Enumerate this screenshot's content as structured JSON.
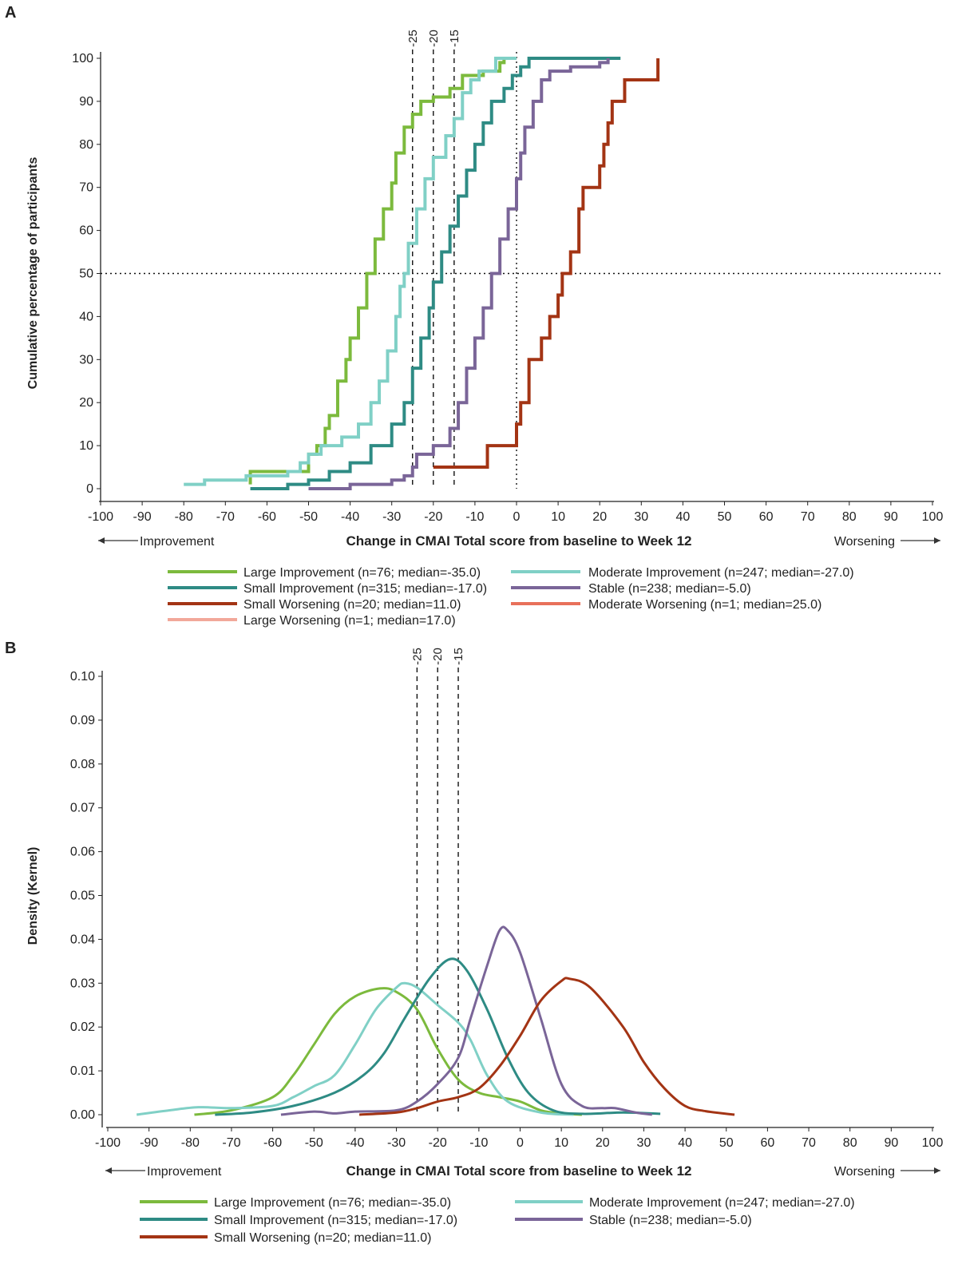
{
  "colors": {
    "large_improvement": "#7cba3d",
    "moderate_improvement": "#80d0c6",
    "small_improvement": "#2e8b84",
    "stable": "#7a6598",
    "small_worsening": "#a33414",
    "moderate_worsening": "#e8705a",
    "large_worsening": "#f2a89a"
  },
  "chart_data": [
    {
      "panel_label": "A",
      "type": "line",
      "step": true,
      "xlabel": "Change in CMAI Total score from baseline to Week 12",
      "ylabel": "Cumulative percentage of participants",
      "left_annotation": "Improvement",
      "right_annotation": "Worsening",
      "xlim": [
        -100,
        100
      ],
      "ylim": [
        0,
        100
      ],
      "xticks": [
        -100,
        -90,
        -80,
        -70,
        -60,
        -50,
        -40,
        -30,
        -20,
        -10,
        0,
        10,
        20,
        30,
        40,
        50,
        60,
        70,
        80,
        90,
        100
      ],
      "yticks": [
        0,
        10,
        20,
        30,
        40,
        50,
        60,
        70,
        80,
        90,
        100
      ],
      "reference_lines": [
        {
          "x": -25,
          "label": "-25",
          "style": "dashed"
        },
        {
          "x": -20,
          "label": "-20",
          "style": "dashed"
        },
        {
          "x": -15,
          "label": "-15",
          "style": "dashed"
        },
        {
          "x": 0,
          "style": "dotted"
        },
        {
          "y": 50,
          "style": "dotted"
        }
      ],
      "legend": [
        {
          "label": "Large Improvement (n=76; median=-35.0)",
          "color_key": "large_improvement"
        },
        {
          "label": "Moderate Improvement (n=247; median=-27.0)",
          "color_key": "moderate_improvement"
        },
        {
          "label": "Small Improvement (n=315; median=-17.0)",
          "color_key": "small_improvement"
        },
        {
          "label": "Stable (n=238; median=-5.0)",
          "color_key": "stable"
        },
        {
          "label": "Small Worsening (n=20; median=11.0)",
          "color_key": "small_worsening"
        },
        {
          "label": "Moderate Worsening (n=1; median=25.0)",
          "color_key": "moderate_worsening"
        },
        {
          "label": "Large Worsening (n=1; median=17.0)",
          "color_key": "large_worsening"
        }
      ],
      "series": [
        {
          "name": "Large Improvement",
          "color_key": "large_improvement",
          "points": [
            [
              -64,
              1
            ],
            [
              -64,
              4
            ],
            [
              -52,
              4
            ],
            [
              -50,
              8
            ],
            [
              -48,
              10
            ],
            [
              -46,
              14
            ],
            [
              -45,
              17
            ],
            [
              -43,
              25
            ],
            [
              -41,
              30
            ],
            [
              -40,
              35
            ],
            [
              -38,
              42
            ],
            [
              -36,
              50
            ],
            [
              -34,
              58
            ],
            [
              -32,
              65
            ],
            [
              -30,
              71
            ],
            [
              -29,
              78
            ],
            [
              -27,
              84
            ],
            [
              -25,
              87
            ],
            [
              -23,
              90
            ],
            [
              -20,
              91
            ],
            [
              -16,
              93
            ],
            [
              -13,
              96
            ],
            [
              -8,
              97
            ],
            [
              -4,
              99
            ],
            [
              -3,
              100
            ]
          ]
        },
        {
          "name": "Moderate Improvement",
          "color_key": "moderate_improvement",
          "points": [
            [
              -80,
              1
            ],
            [
              -75,
              2
            ],
            [
              -65,
              3
            ],
            [
              -55,
              4
            ],
            [
              -52,
              6
            ],
            [
              -50,
              8
            ],
            [
              -47,
              10
            ],
            [
              -42,
              12
            ],
            [
              -38,
              15
            ],
            [
              -35,
              20
            ],
            [
              -33,
              25
            ],
            [
              -31,
              32
            ],
            [
              -29,
              40
            ],
            [
              -28,
              47
            ],
            [
              -27,
              50
            ],
            [
              -26,
              57
            ],
            [
              -24,
              65
            ],
            [
              -22,
              72
            ],
            [
              -20,
              77
            ],
            [
              -17,
              82
            ],
            [
              -15,
              86
            ],
            [
              -13,
              92
            ],
            [
              -11,
              95
            ],
            [
              -9,
              97
            ],
            [
              -5,
              100
            ],
            [
              0,
              100
            ]
          ]
        },
        {
          "name": "Small Improvement",
          "color_key": "small_improvement",
          "points": [
            [
              -64,
              0
            ],
            [
              -55,
              1
            ],
            [
              -50,
              2
            ],
            [
              -45,
              4
            ],
            [
              -40,
              6
            ],
            [
              -35,
              10
            ],
            [
              -30,
              15
            ],
            [
              -27,
              20
            ],
            [
              -25,
              28
            ],
            [
              -23,
              35
            ],
            [
              -21,
              42
            ],
            [
              -20,
              48
            ],
            [
              -18,
              55
            ],
            [
              -16,
              61
            ],
            [
              -14,
              68
            ],
            [
              -12,
              74
            ],
            [
              -10,
              80
            ],
            [
              -8,
              85
            ],
            [
              -6,
              90
            ],
            [
              -3,
              93
            ],
            [
              -1,
              96
            ],
            [
              1,
              98
            ],
            [
              3,
              100
            ],
            [
              25,
              100
            ]
          ]
        },
        {
          "name": "Stable",
          "color_key": "stable",
          "points": [
            [
              -50,
              0
            ],
            [
              -40,
              1
            ],
            [
              -30,
              2
            ],
            [
              -27,
              3
            ],
            [
              -25,
              5
            ],
            [
              -24,
              8
            ],
            [
              -20,
              10
            ],
            [
              -16,
              14
            ],
            [
              -14,
              20
            ],
            [
              -12,
              28
            ],
            [
              -10,
              35
            ],
            [
              -8,
              42
            ],
            [
              -6,
              50
            ],
            [
              -4,
              58
            ],
            [
              -2,
              65
            ],
            [
              0,
              72
            ],
            [
              1,
              78
            ],
            [
              2,
              84
            ],
            [
              4,
              90
            ],
            [
              6,
              95
            ],
            [
              8,
              97
            ],
            [
              13,
              98
            ],
            [
              20,
              99
            ],
            [
              22,
              100
            ]
          ]
        },
        {
          "name": "Small Worsening",
          "color_key": "small_worsening",
          "points": [
            [
              -20,
              5
            ],
            [
              -7,
              10
            ],
            [
              0,
              15
            ],
            [
              1,
              20
            ],
            [
              3,
              25
            ],
            [
              3,
              30
            ],
            [
              6,
              35
            ],
            [
              8,
              40
            ],
            [
              10,
              45
            ],
            [
              11,
              50
            ],
            [
              13,
              55
            ],
            [
              15,
              65
            ],
            [
              16,
              70
            ],
            [
              20,
              75
            ],
            [
              21,
              80
            ],
            [
              22,
              85
            ],
            [
              23,
              90
            ],
            [
              26,
              95
            ],
            [
              34,
              100
            ]
          ]
        }
      ]
    },
    {
      "panel_label": "B",
      "type": "line",
      "xlabel": "Change in CMAI Total score from baseline to Week 12",
      "ylabel": "Density (Kernel)",
      "left_annotation": "Improvement",
      "right_annotation": "Worsening",
      "xlim": [
        -100,
        100
      ],
      "ylim": [
        0,
        0.1
      ],
      "xticks": [
        -100,
        -90,
        -80,
        -70,
        -60,
        -50,
        -40,
        -30,
        -20,
        -10,
        0,
        10,
        20,
        30,
        40,
        50,
        60,
        70,
        80,
        90,
        100
      ],
      "yticks": [
        "0.00",
        "0.01",
        "0.02",
        "0.03",
        "0.04",
        "0.05",
        "0.06",
        "0.07",
        "0.08",
        "0.09",
        "0.10"
      ],
      "reference_lines": [
        {
          "x": -25,
          "label": "-25",
          "style": "dashed"
        },
        {
          "x": -20,
          "label": "-20",
          "style": "dashed"
        },
        {
          "x": -15,
          "label": "-15",
          "style": "dashed"
        }
      ],
      "legend": [
        {
          "label": "Large Improvement (n=76; median=-35.0)",
          "color_key": "large_improvement"
        },
        {
          "label": "Moderate Improvement (n=247; median=-27.0)",
          "color_key": "moderate_improvement"
        },
        {
          "label": "Small Improvement (n=315; median=-17.0)",
          "color_key": "small_improvement"
        },
        {
          "label": "Stable (n=238; median=-5.0)",
          "color_key": "stable"
        },
        {
          "label": "Small Worsening (n=20; median=11.0)",
          "color_key": "small_worsening"
        }
      ],
      "series": [
        {
          "name": "Large Improvement",
          "color_key": "large_improvement",
          "points": [
            [
              -79,
              0
            ],
            [
              -70,
              0.001
            ],
            [
              -60,
              0.004
            ],
            [
              -55,
              0.009
            ],
            [
              -50,
              0.016
            ],
            [
              -45,
              0.023
            ],
            [
              -40,
              0.027
            ],
            [
              -34,
              0.0288
            ],
            [
              -30,
              0.028
            ],
            [
              -25,
              0.024
            ],
            [
              -20,
              0.015
            ],
            [
              -15,
              0.008
            ],
            [
              -10,
              0.005
            ],
            [
              -5,
              0.004
            ],
            [
              0,
              0.003
            ],
            [
              5,
              0.001
            ],
            [
              10,
              0.0003
            ],
            [
              15,
              0
            ]
          ]
        },
        {
          "name": "Moderate Improvement",
          "color_key": "moderate_improvement",
          "points": [
            [
              -93,
              0
            ],
            [
              -85,
              0.001
            ],
            [
              -78,
              0.0017
            ],
            [
              -70,
              0.0015
            ],
            [
              -60,
              0.002
            ],
            [
              -55,
              0.004
            ],
            [
              -50,
              0.0065
            ],
            [
              -45,
              0.009
            ],
            [
              -40,
              0.016
            ],
            [
              -35,
              0.024
            ],
            [
              -30,
              0.029
            ],
            [
              -28,
              0.03
            ],
            [
              -25,
              0.029
            ],
            [
              -20,
              0.025
            ],
            [
              -15,
              0.021
            ],
            [
              -12,
              0.017
            ],
            [
              -8,
              0.009
            ],
            [
              -3,
              0.003
            ],
            [
              5,
              0.0005
            ],
            [
              13,
              0
            ]
          ]
        },
        {
          "name": "Small Improvement",
          "color_key": "small_improvement",
          "points": [
            [
              -74,
              0
            ],
            [
              -65,
              0.0005
            ],
            [
              -55,
              0.002
            ],
            [
              -45,
              0.005
            ],
            [
              -38,
              0.009
            ],
            [
              -33,
              0.014
            ],
            [
              -28,
              0.022
            ],
            [
              -22,
              0.031
            ],
            [
              -17,
              0.0355
            ],
            [
              -13,
              0.033
            ],
            [
              -8,
              0.024
            ],
            [
              -3,
              0.013
            ],
            [
              2,
              0.005
            ],
            [
              8,
              0.001
            ],
            [
              15,
              0.0002
            ],
            [
              25,
              0.0005
            ],
            [
              34,
              0.0002
            ]
          ]
        },
        {
          "name": "Stable",
          "color_key": "stable",
          "points": [
            [
              -58,
              0
            ],
            [
              -50,
              0.0007
            ],
            [
              -45,
              0.0003
            ],
            [
              -40,
              0.0007
            ],
            [
              -30,
              0.001
            ],
            [
              -25,
              0.003
            ],
            [
              -20,
              0.007
            ],
            [
              -15,
              0.013
            ],
            [
              -12,
              0.022
            ],
            [
              -8,
              0.034
            ],
            [
              -5,
              0.042
            ],
            [
              -3,
              0.042
            ],
            [
              0,
              0.037
            ],
            [
              5,
              0.022
            ],
            [
              10,
              0.007
            ],
            [
              15,
              0.002
            ],
            [
              20,
              0.0015
            ],
            [
              23,
              0.0015
            ],
            [
              28,
              0.0005
            ],
            [
              32,
              0
            ]
          ]
        },
        {
          "name": "Small Worsening",
          "color_key": "small_worsening",
          "points": [
            [
              -39,
              0
            ],
            [
              -30,
              0.0005
            ],
            [
              -25,
              0.0015
            ],
            [
              -20,
              0.003
            ],
            [
              -15,
              0.004
            ],
            [
              -10,
              0.006
            ],
            [
              -5,
              0.011
            ],
            [
              0,
              0.018
            ],
            [
              5,
              0.026
            ],
            [
              10,
              0.0305
            ],
            [
              12,
              0.031
            ],
            [
              17,
              0.029
            ],
            [
              25,
              0.02
            ],
            [
              30,
              0.012
            ],
            [
              35,
              0.006
            ],
            [
              40,
              0.002
            ],
            [
              45,
              0.0008
            ],
            [
              52,
              0
            ]
          ]
        }
      ]
    }
  ]
}
